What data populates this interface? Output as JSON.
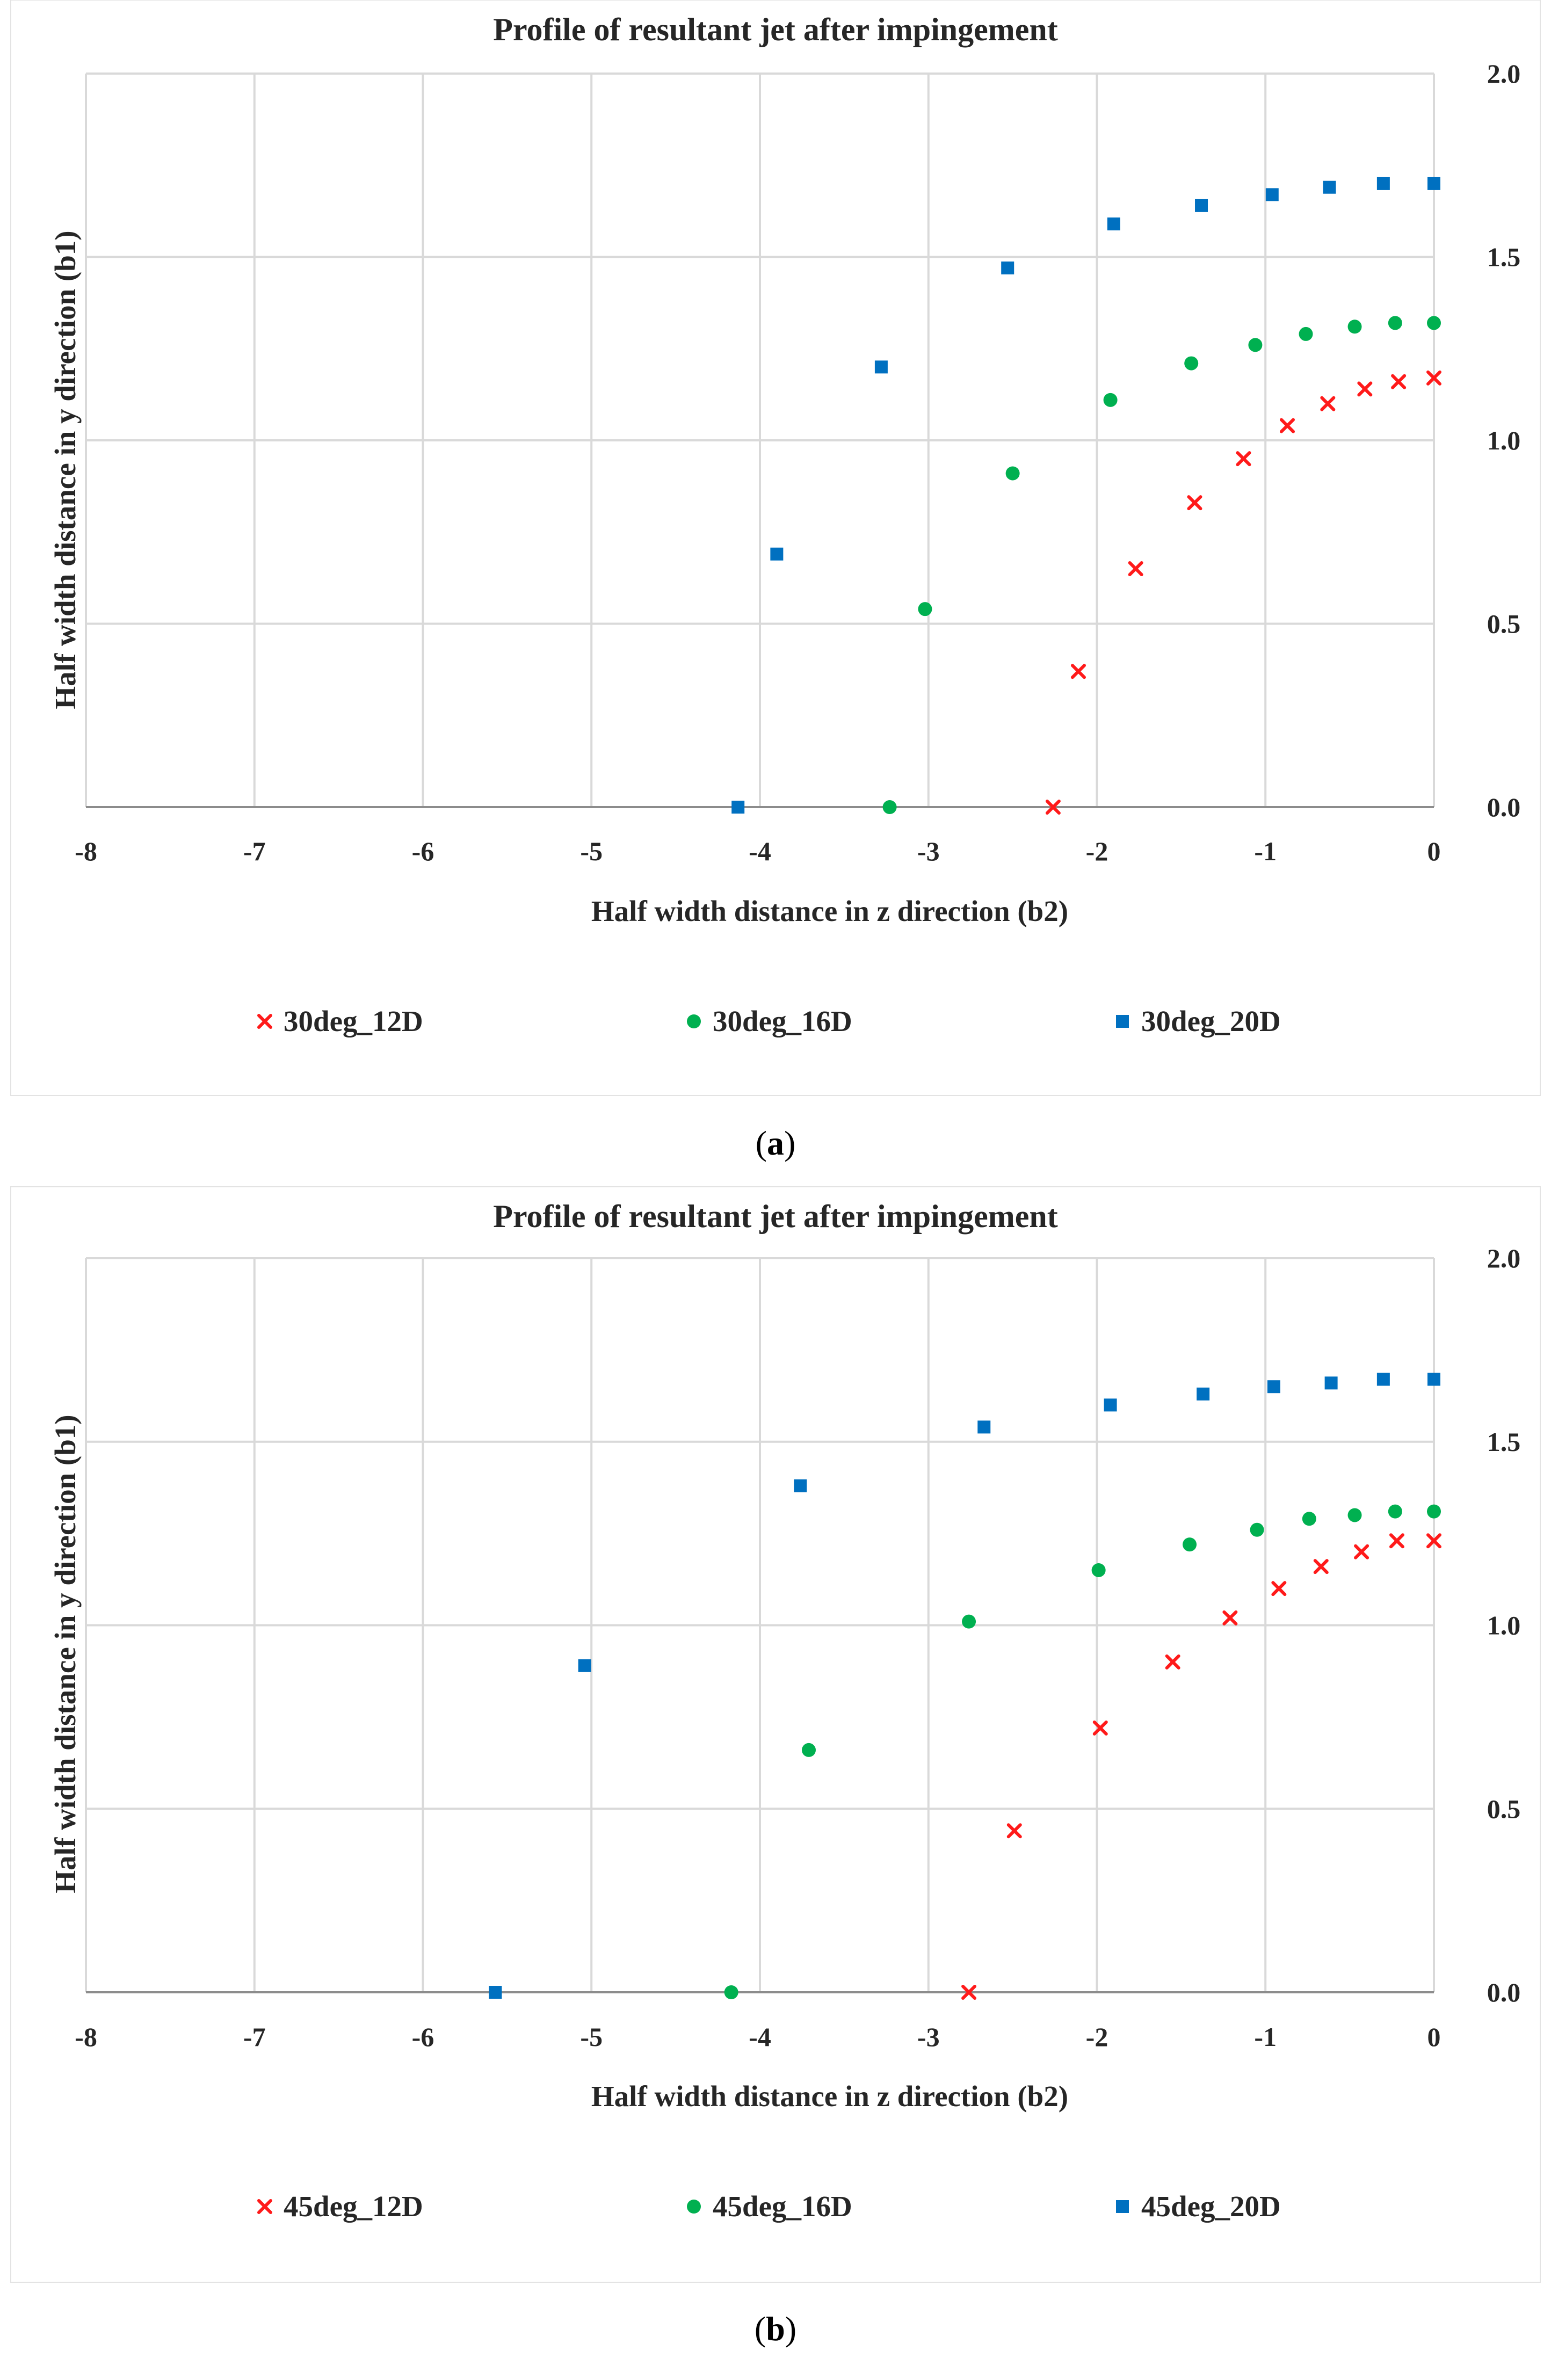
{
  "colors": {
    "series_12D": "#ff1a1a",
    "series_16D": "#00b050",
    "series_20D": "#0070c0",
    "grid": "#d9d9d9",
    "axis": "#8c8c8c",
    "text": "#262626"
  },
  "chart_data": [
    {
      "type": "scatter",
      "title": "Profile of resultant jet after impingement",
      "xlabel": "Half width distance in z direction (b2)",
      "ylabel": "Half width distance in y direction (b1)",
      "xlim": [
        -8,
        0
      ],
      "ylim": [
        0,
        2
      ],
      "x_ticks": [
        "-8",
        "-7",
        "-6",
        "-5",
        "-4",
        "-3",
        "-2",
        "-1",
        "0"
      ],
      "y_ticks": [
        "0.0",
        "0.5",
        "1.0",
        "1.5",
        "2.0"
      ],
      "y_axis_side": "right",
      "grid": true,
      "legend_position": "bottom",
      "caption_letter": "a",
      "series": [
        {
          "name": "30deg_12D",
          "marker": "x",
          "color": "#ff1a1a",
          "points": [
            [
              -2.26,
              0.0
            ],
            [
              -2.11,
              0.37
            ],
            [
              -1.77,
              0.65
            ],
            [
              -1.42,
              0.83
            ],
            [
              -1.13,
              0.95
            ],
            [
              -0.87,
              1.04
            ],
            [
              -0.63,
              1.1
            ],
            [
              -0.41,
              1.14
            ],
            [
              -0.21,
              1.16
            ],
            [
              0.0,
              1.17
            ]
          ]
        },
        {
          "name": "30deg_16D",
          "marker": "circle",
          "color": "#00b050",
          "points": [
            [
              -3.23,
              0.0
            ],
            [
              -3.02,
              0.54
            ],
            [
              -2.5,
              0.91
            ],
            [
              -1.92,
              1.11
            ],
            [
              -1.44,
              1.21
            ],
            [
              -1.06,
              1.26
            ],
            [
              -0.76,
              1.29
            ],
            [
              -0.47,
              1.31
            ],
            [
              -0.23,
              1.32
            ],
            [
              0.0,
              1.32
            ]
          ]
        },
        {
          "name": "30deg_20D",
          "marker": "square",
          "color": "#0070c0",
          "points": [
            [
              -4.13,
              0.0
            ],
            [
              -3.9,
              0.69
            ],
            [
              -3.28,
              1.2
            ],
            [
              -2.53,
              1.47
            ],
            [
              -1.9,
              1.59
            ],
            [
              -1.38,
              1.64
            ],
            [
              -0.96,
              1.67
            ],
            [
              -0.62,
              1.69
            ],
            [
              -0.3,
              1.7
            ],
            [
              0.0,
              1.7
            ]
          ]
        }
      ]
    },
    {
      "type": "scatter",
      "title": "Profile of resultant jet after impingement",
      "xlabel": "Half width distance in z direction (b2)",
      "ylabel": "Half width distance in y direction (b1)",
      "xlim": [
        -8,
        0
      ],
      "ylim": [
        0,
        2
      ],
      "x_ticks": [
        "-8",
        "-7",
        "-6",
        "-5",
        "-4",
        "-3",
        "-2",
        "-1",
        "0"
      ],
      "y_ticks": [
        "0.0",
        "0.5",
        "1.0",
        "1.5",
        "2.0"
      ],
      "y_axis_side": "right",
      "grid": true,
      "legend_position": "bottom",
      "caption_letter": "b",
      "series": [
        {
          "name": "45deg_12D",
          "marker": "x",
          "color": "#ff1a1a",
          "points": [
            [
              -2.76,
              0.0
            ],
            [
              -2.49,
              0.44
            ],
            [
              -1.98,
              0.72
            ],
            [
              -1.55,
              0.9
            ],
            [
              -1.21,
              1.02
            ],
            [
              -0.92,
              1.1
            ],
            [
              -0.67,
              1.16
            ],
            [
              -0.43,
              1.2
            ],
            [
              -0.22,
              1.23
            ],
            [
              0.0,
              1.23
            ]
          ]
        },
        {
          "name": "45deg_16D",
          "marker": "circle",
          "color": "#00b050",
          "points": [
            [
              -4.17,
              0.0
            ],
            [
              -3.71,
              0.66
            ],
            [
              -2.76,
              1.01
            ],
            [
              -1.99,
              1.15
            ],
            [
              -1.45,
              1.22
            ],
            [
              -1.05,
              1.26
            ],
            [
              -0.74,
              1.29
            ],
            [
              -0.47,
              1.3
            ],
            [
              -0.23,
              1.31
            ],
            [
              0.0,
              1.31
            ]
          ]
        },
        {
          "name": "45deg_20D",
          "marker": "square",
          "color": "#0070c0",
          "points": [
            [
              -5.57,
              0.0
            ],
            [
              -5.04,
              0.89
            ],
            [
              -3.76,
              1.38
            ],
            [
              -2.67,
              1.54
            ],
            [
              -1.92,
              1.6
            ],
            [
              -1.37,
              1.63
            ],
            [
              -0.95,
              1.65
            ],
            [
              -0.61,
              1.66
            ],
            [
              -0.3,
              1.67
            ],
            [
              0.0,
              1.67
            ]
          ]
        }
      ]
    }
  ]
}
